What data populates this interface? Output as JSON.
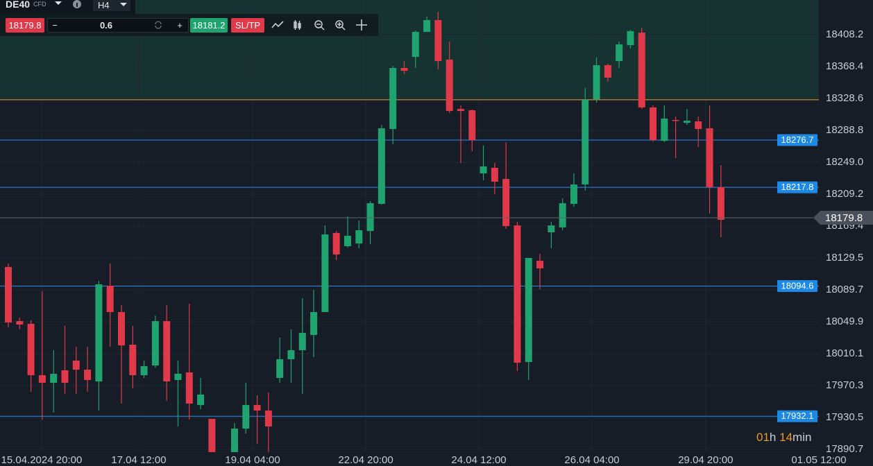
{
  "toolbar": {
    "symbol": "DE40",
    "symbol_type": "CFD",
    "timeframe": "H4",
    "bid": "18179.8",
    "minus": "−",
    "lot": "0.6",
    "plus": "+",
    "ask": "18181.2",
    "sltp": "SL/TP"
  },
  "countdown": {
    "hours": "01",
    "h": "h",
    "minutes": "14",
    "min": "min"
  },
  "chart_data": {
    "type": "candlestick",
    "up_color": "#1fa36f",
    "down_color": "#e0394a",
    "grid": true,
    "x": [
      0,
      1,
      2,
      3,
      4,
      5,
      6,
      7,
      8,
      9,
      10,
      11,
      12,
      13,
      14,
      15,
      16,
      17,
      18,
      19,
      20,
      21,
      22,
      23,
      24,
      25,
      26,
      27,
      28,
      29,
      30,
      31,
      32,
      33,
      34,
      35,
      36,
      37,
      38,
      39,
      40,
      41,
      42,
      43,
      44,
      45,
      46,
      47,
      48,
      49,
      50,
      51,
      52,
      53,
      54,
      55,
      56,
      57,
      58,
      59,
      60,
      61,
      62,
      63
    ],
    "open": [
      18118.3,
      18050.8,
      18047.4,
      17983.3,
      17973.8,
      17989.4,
      18001.5,
      17990.2,
      17975.5,
      18095.0,
      18062.1,
      18021.4,
      17983.3,
      17995.4,
      18050.8,
      17977.3,
      17986.8,
      17946.1,
      17928.8,
      null,
      17880.3,
      17916.7,
      17946.1,
      17939.2,
      17979.9,
      18003.2,
      18014.5,
      18033.5,
      18062.1,
      18160.7,
      18144.3,
      18147.7,
      18163.3,
      18197.1,
      18290.5,
      18366.7,
      18380.5,
      18411.7,
      18426.4,
      18377.1,
      18315.6,
      18313.9,
      18235.2,
      18242.1,
      18228.2,
      18170.2,
      17999.8,
      18126.1,
      18161.6,
      18167.7,
      18197.1,
      18221.3,
      18327.7,
      18370.2,
      18375.3,
      18395.2,
      18410.8,
      18317.4,
      18275.8,
      18301.8,
      18298.3,
      18300.1,
      18291.4,
      18217.9
    ],
    "high": [
      18122.6,
      18055.1,
      18051.7,
      18088.0,
      18014.5,
      18044.8,
      18018.8,
      18018.8,
      18101.0,
      18122.6,
      18070.7,
      18044.8,
      18001.5,
      18057.7,
      18070.7,
      18001.5,
      18072.5,
      17979.9,
      17928.8,
      null,
      17923.6,
      17973.8,
      17958.2,
      17961.7,
      18030.1,
      18040.4,
      18079.4,
      18089.8,
      18170.2,
      18163.3,
      18181.5,
      18176.3,
      18200.5,
      18295.7,
      18369.3,
      18375.3,
      18413.4,
      18430.7,
      18436.8,
      18399.6,
      18320.0,
      18314.8,
      18269.8,
      18248.1,
      18274.1,
      18174.6,
      18129.6,
      18134.8,
      18174.6,
      18204.0,
      18235.2,
      18341.6,
      18379.7,
      18371.9,
      18399.6,
      18414.3,
      18416.9,
      18320.0,
      18320.0,
      18306.1,
      18315.6,
      18306.1,
      18320.0,
      18245.5
    ],
    "low": [
      18043.0,
      18040.4,
      17962.6,
      17927.9,
      17936.6,
      17960.0,
      17960.0,
      17962.6,
      17939.2,
      18018.8,
      17947.9,
      17966.9,
      17979.9,
      17992.8,
      17951.3,
      17919.3,
      17927.9,
      17940.9,
      17870.0,
      null,
      17880.3,
      17910.6,
      17897.7,
      17887.3,
      17973.8,
      17973.8,
      17960.0,
      18005.8,
      18062.1,
      18127.0,
      18142.5,
      18141.7,
      18146.9,
      18196.2,
      18271.5,
      18358.9,
      18366.7,
      18411.7,
      18365.0,
      18310.4,
      18248.1,
      18262.8,
      18226.5,
      18209.2,
      18165.9,
      17988.5,
      17977.3,
      18090.6,
      18141.7,
      18164.2,
      18193.6,
      18213.5,
      18323.4,
      18349.4,
      18366.7,
      18390.9,
      18315.6,
      18275.0,
      18274.1,
      18254.2,
      18295.7,
      18268.0,
      18185.0,
      18155.5
    ],
    "close": [
      18049.1,
      18046.5,
      17983.3,
      17973.8,
      17985.1,
      17973.8,
      17990.2,
      17977.3,
      18096.7,
      18062.1,
      18020.5,
      17983.3,
      17994.6,
      18050.8,
      17975.5,
      17985.1,
      17947.9,
      17959.1,
      17880.3,
      null,
      17916.7,
      17946.1,
      17939.2,
      17919.3,
      18003.2,
      18014.5,
      18036.1,
      18062.1,
      18159.0,
      18133.9,
      18157.3,
      18164.2,
      18197.9,
      18291.4,
      18366.7,
      18363.2,
      18411.7,
      18426.4,
      18375.3,
      18313.0,
      18313.0,
      18276.7,
      18243.8,
      18224.8,
      18169.4,
      17998.9,
      18129.6,
      18116.6,
      18170.2,
      18197.9,
      18221.3,
      18326.9,
      18370.2,
      18354.6,
      18396.1,
      18412.6,
      18317.4,
      18276.7,
      18303.5,
      18300.9,
      18300.9,
      18290.5,
      18217.9,
      18177.2
    ],
    "xlim": [
      -0.736,
      71.66
    ],
    "xticks": [
      {
        "value": 2.94,
        "label": "15.04.2024 20:00"
      },
      {
        "value": 11.53,
        "label": "17.04 12:00"
      },
      {
        "value": 21.6,
        "label": "19.04 04:00"
      },
      {
        "value": 31.6,
        "label": "22.04 20:00"
      },
      {
        "value": 41.6,
        "label": "24.04 12:00"
      },
      {
        "value": 51.6,
        "label": "26.04 04:00"
      },
      {
        "value": 61.65,
        "label": "29.04 20:00"
      },
      {
        "value": 71.66,
        "label": "01.05 12:00"
      }
    ],
    "ylim": [
      17887.3,
      18451.5
    ],
    "yticks": [
      18408.2,
      18368.4,
      18328.6,
      18288.8,
      {
        "value": 18249,
        "label": "18249.0"
      },
      18209.2,
      18169.4,
      18129.5,
      18089.7,
      18049.9,
      18010.1,
      17970.3,
      17930.5,
      17890.7
    ],
    "levels": [
      {
        "value": 18276.7,
        "color": "#2a8af0"
      },
      {
        "value": 18217.8,
        "color": "#2a8af0"
      },
      {
        "value": 18094.6,
        "color": "#2a8af0"
      },
      {
        "value": 17932.1,
        "color": "#2a8af0"
      }
    ],
    "take_zone": {
      "value": 18327,
      "color": "#e6a23c"
    },
    "current_price": {
      "value": 18179.8,
      "color": "#5b626b"
    }
  }
}
